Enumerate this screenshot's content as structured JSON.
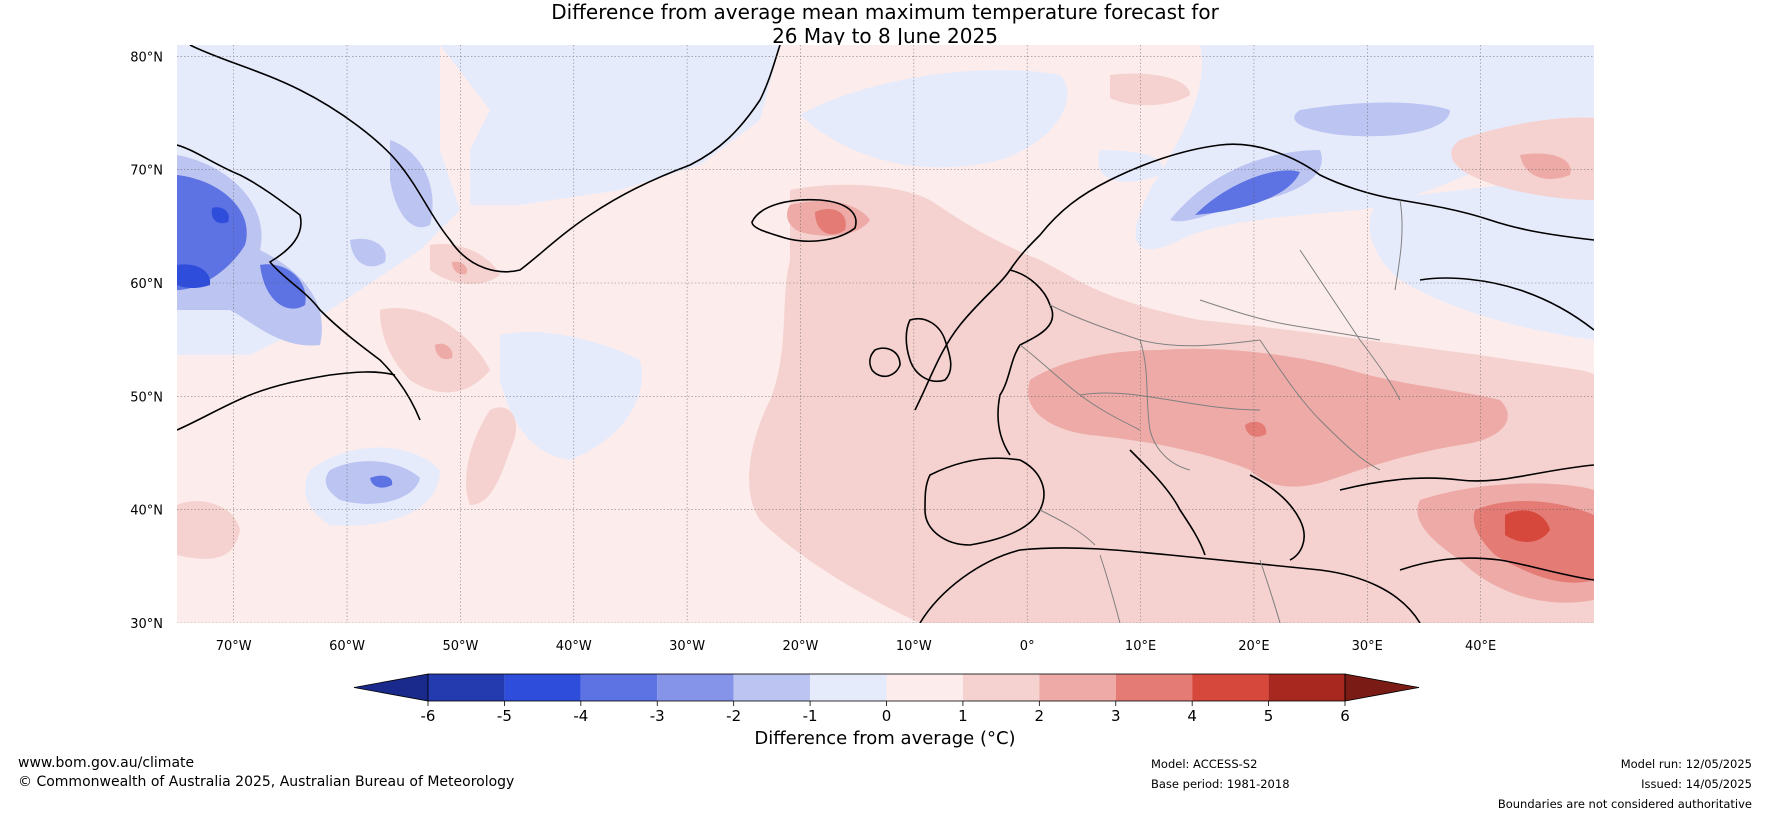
{
  "title": {
    "line1": "Difference from average mean maximum temperature forecast for",
    "line2": "26 May to 8 June 2025"
  },
  "map": {
    "lon_range": [
      -75,
      50
    ],
    "lat_range": [
      30,
      81
    ],
    "lat_ticks": [
      {
        "value": 80,
        "label": "80°N"
      },
      {
        "value": 70,
        "label": "70°N"
      },
      {
        "value": 60,
        "label": "60°N"
      },
      {
        "value": 50,
        "label": "50°N"
      },
      {
        "value": 40,
        "label": "40°N"
      },
      {
        "value": 30,
        "label": "30°N"
      }
    ],
    "lon_ticks": [
      {
        "value": -70,
        "label": "70°W"
      },
      {
        "value": -60,
        "label": "60°W"
      },
      {
        "value": -50,
        "label": "50°W"
      },
      {
        "value": -40,
        "label": "40°W"
      },
      {
        "value": -30,
        "label": "30°W"
      },
      {
        "value": -20,
        "label": "20°W"
      },
      {
        "value": -10,
        "label": "10°W"
      },
      {
        "value": 0,
        "label": "0°"
      },
      {
        "value": 10,
        "label": "10°E"
      },
      {
        "value": 20,
        "label": "20°E"
      },
      {
        "value": 30,
        "label": "30°E"
      },
      {
        "value": 40,
        "label": "40°E"
      }
    ]
  },
  "colorbar": {
    "label": "Difference from average (°C)",
    "ticks": [
      "-6",
      "-5",
      "-4",
      "-3",
      "-2",
      "-1",
      "0",
      "1",
      "2",
      "3",
      "4",
      "5",
      "6"
    ],
    "bins": [
      "#243bb0",
      "#2f4ddb",
      "#5d72e3",
      "#8593e8",
      "#bcc4f2",
      "#e6ebfc",
      "#fceceb",
      "#f5d2cf",
      "#edaaa6",
      "#e47c75",
      "#d6473c",
      "#a82820"
    ],
    "low_extend": "#1a2a8c",
    "high_extend": "#7a1b16"
  },
  "footer": {
    "website": "www.bom.gov.au/climate",
    "copyright": "© Commonwealth of Australia 2025, Australian Bureau of Meteorology",
    "model": "Model: ACCESS-S2",
    "base_period": "Base period: 1981-2018",
    "model_run": "Model run: 12/05/2025",
    "issued": "Issued: 14/05/2025",
    "disclaimer": "Boundaries are not considered authoritative"
  }
}
